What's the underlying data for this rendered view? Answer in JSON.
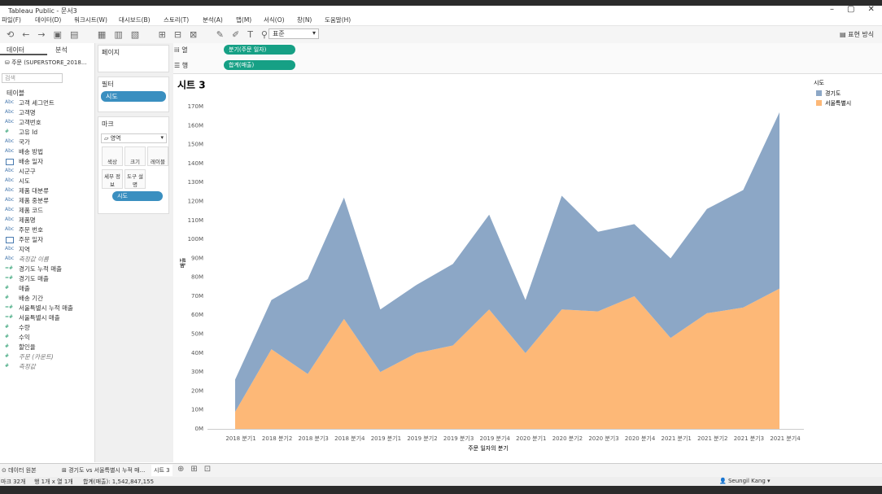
{
  "window": {
    "title": "Tableau Public - 문서3"
  },
  "menu": [
    "파일(F)",
    "데이터(D)",
    "워크시트(W)",
    "대시보드(B)",
    "스토리(T)",
    "분석(A)",
    "맵(M)",
    "서식(O)",
    "창(N)",
    "도움말(H)"
  ],
  "toolbar": {
    "fit": "표준",
    "show_me": "표현 방식"
  },
  "data_pane": {
    "tabs": [
      "데이터",
      "분석"
    ],
    "source": "주문 (SUPERSTORE_2018...",
    "search": "검색",
    "section": "테이블",
    "fields": [
      {
        "icon": "Abc",
        "name": "고객 세그먼트"
      },
      {
        "icon": "Abc",
        "name": "고객명"
      },
      {
        "icon": "Abc",
        "name": "고객번호"
      },
      {
        "icon": "#",
        "name": "고유 Id"
      },
      {
        "icon": "Abc",
        "name": "국가"
      },
      {
        "icon": "Abc",
        "name": "배송 방법"
      },
      {
        "name": "배송 일자"
      },
      {
        "icon": "Abc",
        "name": "시군구"
      },
      {
        "icon": "Abc",
        "name": "시도"
      },
      {
        "icon": "Abc",
        "name": "제품 대분류"
      },
      {
        "icon": "Abc",
        "name": "제품 중분류"
      },
      {
        "icon": "Abc",
        "name": "제품 코드"
      },
      {
        "icon": "Abc",
        "name": "제품명"
      },
      {
        "icon": "Abc",
        "name": "주문 번호"
      },
      {
        "name": "주문 일자"
      },
      {
        "icon": "Abc",
        "name": "지역"
      },
      {
        "icon": "Abc",
        "name": "측정값 이름",
        "italic": true
      },
      {
        "icon": "=#",
        "name": "경기도 누적 매출"
      },
      {
        "icon": "=#",
        "name": "경기도 매출"
      },
      {
        "icon": "#",
        "name": "매출"
      },
      {
        "icon": "#",
        "name": "배송 기간"
      },
      {
        "icon": "=#",
        "name": "서울특별시 누적 매출"
      },
      {
        "icon": "=#",
        "name": "서울특별시 매출"
      },
      {
        "icon": "#",
        "name": "수량"
      },
      {
        "icon": "#",
        "name": "수익"
      },
      {
        "icon": "#",
        "name": "할인율"
      },
      {
        "icon": "#",
        "name": "주문 (카운트)",
        "italic": true
      },
      {
        "icon": "#",
        "name": "측정값",
        "italic": true
      }
    ]
  },
  "cards": {
    "pages": "페이지",
    "filters": "필터",
    "filter_pill": "시도",
    "marks": "마크",
    "mark_type": "영역",
    "mark_buttons": [
      "색상",
      "크기",
      "레이블",
      "세부 정보",
      "도구 설명"
    ],
    "mark_pill": "시도"
  },
  "shelves": {
    "columns": "열",
    "columns_pill": "분기(주문 일자)",
    "rows": "행",
    "rows_pill": "합계(매출)"
  },
  "sheet_title": "시트 3",
  "chart_data": {
    "type": "area",
    "stacked": true,
    "grid": false,
    "x_label": "주문 일자의 분기",
    "y_label": "매출",
    "categories": [
      "2018 분기1",
      "2018 분기2",
      "2018 분기3",
      "2018 분기4",
      "2019 분기1",
      "2019 분기2",
      "2019 분기3",
      "2019 분기4",
      "2020 분기1",
      "2020 분기2",
      "2020 분기3",
      "2020 분기4",
      "2021 분기1",
      "2021 분기2",
      "2021 분기3",
      "2021 분기4"
    ],
    "series": [
      {
        "name": "경기도",
        "color": "#8ca7c6",
        "values": [
          17000000,
          26000000,
          50000000,
          64000000,
          33000000,
          36000000,
          43000000,
          50000000,
          28000000,
          60000000,
          42000000,
          38000000,
          42000000,
          55000000,
          62000000,
          93000000
        ]
      },
      {
        "name": "서울특별시",
        "color": "#fdb877",
        "values": [
          9000000,
          42000000,
          29000000,
          58000000,
          30000000,
          40000000,
          44000000,
          63000000,
          40000000,
          63000000,
          62000000,
          70000000,
          48000000,
          61000000,
          64000000,
          74000000
        ]
      }
    ],
    "ylim": [
      0,
      170000000
    ],
    "yticks": [
      {
        "value": 0,
        "label": "0M"
      },
      {
        "value": 10000000,
        "label": "10M"
      },
      {
        "value": 20000000,
        "label": "20M"
      },
      {
        "value": 30000000,
        "label": "30M"
      },
      {
        "value": 40000000,
        "label": "40M"
      },
      {
        "value": 50000000,
        "label": "50M"
      },
      {
        "value": 60000000,
        "label": "60M"
      },
      {
        "value": 70000000,
        "label": "70M"
      },
      {
        "value": 80000000,
        "label": "80M"
      },
      {
        "value": 90000000,
        "label": "90M"
      },
      {
        "value": 100000000,
        "label": "100M"
      },
      {
        "value": 110000000,
        "label": "110M"
      },
      {
        "value": 120000000,
        "label": "120M"
      },
      {
        "value": 130000000,
        "label": "130M"
      },
      {
        "value": 140000000,
        "label": "140M"
      },
      {
        "value": 150000000,
        "label": "150M"
      },
      {
        "value": 160000000,
        "label": "160M"
      },
      {
        "value": 170000000,
        "label": "170M"
      }
    ],
    "legend_title": "시도"
  },
  "tabs": [
    "데이터 원본",
    "경기도 vs 서울특별시 누적 매...",
    "시트 3"
  ],
  "status": {
    "marks": "마크 32개",
    "dims": "행 1개 x 열 1개",
    "sum": "합계(매출): 1,542,847,155",
    "user": "Seungil Kang"
  }
}
